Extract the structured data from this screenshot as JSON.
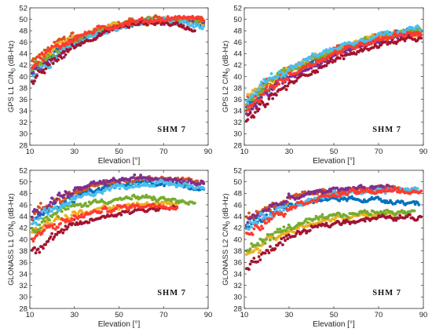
{
  "chart_data": [
    {
      "type": "scatter",
      "panel": "GPS L1",
      "xlabel": "Elevation [°]",
      "ylabel": "GPS L1 C/N0 (dB-Hz)",
      "ylabel_main": "GPS L1 C/N",
      "ylabel_sub": "0",
      "ylabel_unit": " (dB-Hz)",
      "annotation": "SHM 7",
      "xlim": [
        10,
        90
      ],
      "ylim": [
        28,
        52
      ],
      "xticks": [
        10,
        30,
        50,
        70,
        90
      ],
      "yticks": [
        28,
        30,
        32,
        34,
        36,
        38,
        40,
        42,
        44,
        46,
        48,
        50,
        52
      ],
      "grid": false,
      "series": [
        {
          "color": "#0072bd",
          "x": [
            11,
            20,
            30,
            40,
            50,
            60,
            70,
            80,
            88
          ],
          "y": [
            40.5,
            43.8,
            46.1,
            47.8,
            49.0,
            49.6,
            49.9,
            49.7,
            49.3
          ]
        },
        {
          "color": "#d95319",
          "x": [
            11,
            20,
            30,
            40,
            50,
            60,
            70,
            80,
            88
          ],
          "y": [
            42.5,
            45.0,
            46.9,
            48.2,
            49.2,
            49.8,
            50.2,
            50.1,
            49.8
          ]
        },
        {
          "color": "#edb120",
          "x": [
            11,
            20,
            30,
            40,
            50,
            60,
            70,
            80,
            88
          ],
          "y": [
            41.5,
            44.3,
            46.4,
            47.9,
            49.0,
            49.6,
            49.9,
            49.8,
            49.5
          ]
        },
        {
          "color": "#7e2f8e",
          "x": [
            11,
            20,
            30,
            40,
            50,
            60,
            70,
            80,
            88
          ],
          "y": [
            40.0,
            43.4,
            45.9,
            47.6,
            48.8,
            49.5,
            49.9,
            49.8,
            49.5
          ]
        },
        {
          "color": "#77ac30",
          "x": [
            11,
            20,
            30,
            40,
            50,
            60,
            70,
            80,
            88
          ],
          "y": [
            41.0,
            44.0,
            46.2,
            47.8,
            49.0,
            49.6,
            49.9,
            49.8,
            49.5
          ]
        },
        {
          "color": "#4dbeee",
          "x": [
            11,
            20,
            30,
            40,
            50,
            60,
            70,
            80,
            88
          ],
          "y": [
            39.2,
            42.8,
            45.5,
            47.4,
            48.7,
            49.4,
            49.8,
            49.4,
            48.8
          ]
        },
        {
          "color": "#a2142f",
          "x": [
            11,
            20,
            30,
            40,
            50,
            60,
            70,
            80,
            84
          ],
          "y": [
            38.6,
            42.5,
            45.3,
            47.2,
            48.6,
            49.3,
            49.5,
            48.7,
            48.1
          ]
        },
        {
          "color": "#ff3b30",
          "x": [
            11,
            20,
            30,
            40,
            50,
            60,
            70,
            80,
            88
          ],
          "y": [
            42.0,
            44.8,
            46.8,
            48.1,
            49.1,
            49.7,
            50.0,
            50.3,
            50.0
          ]
        }
      ]
    },
    {
      "type": "scatter",
      "panel": "GPS L2",
      "xlabel": "Elevation [°]",
      "ylabel": "GPS L2 C/N0 (dB-Hz)",
      "ylabel_main": "GPS L2 C/N",
      "ylabel_sub": "0",
      "ylabel_unit": " (dB-Hz)",
      "annotation": "SHM 7",
      "xlim": [
        10,
        90
      ],
      "ylim": [
        28,
        52
      ],
      "xticks": [
        10,
        30,
        50,
        70,
        90
      ],
      "yticks": [
        28,
        30,
        32,
        34,
        36,
        38,
        40,
        42,
        44,
        46,
        48,
        50,
        52
      ],
      "grid": false,
      "series": [
        {
          "color": "#0072bd",
          "x": [
            11,
            20,
            30,
            40,
            50,
            60,
            70,
            80,
            89
          ],
          "y": [
            34.5,
            37.8,
            40.5,
            42.5,
            44.2,
            45.6,
            46.8,
            47.7,
            48.0
          ]
        },
        {
          "color": "#d95319",
          "x": [
            11,
            20,
            30,
            40,
            50,
            60,
            70,
            80,
            89
          ],
          "y": [
            35.5,
            38.6,
            41.1,
            43.0,
            44.6,
            45.9,
            47.0,
            47.6,
            47.8
          ]
        },
        {
          "color": "#edb120",
          "x": [
            11,
            20,
            30,
            40,
            50,
            60,
            70,
            80,
            89
          ],
          "y": [
            36.2,
            39.0,
            41.4,
            43.2,
            44.7,
            46.0,
            47.0,
            47.6,
            47.7
          ]
        },
        {
          "color": "#7e2f8e",
          "x": [
            11,
            20,
            30,
            40,
            50,
            60,
            70,
            80,
            89
          ],
          "y": [
            33.5,
            37.0,
            39.8,
            41.9,
            43.7,
            45.1,
            46.3,
            47.2,
            47.5
          ]
        },
        {
          "color": "#77ac30",
          "x": [
            11,
            20,
            30,
            40,
            50,
            60,
            70,
            80,
            89
          ],
          "y": [
            35.0,
            38.8,
            41.0,
            42.8,
            44.4,
            45.8,
            46.9,
            47.6,
            48.0
          ]
        },
        {
          "color": "#4dbeee",
          "x": [
            11,
            20,
            30,
            40,
            50,
            60,
            70,
            80,
            89
          ],
          "y": [
            36.0,
            39.2,
            41.6,
            43.4,
            44.9,
            46.2,
            47.3,
            48.1,
            48.4
          ]
        },
        {
          "color": "#a2142f",
          "x": [
            11,
            20,
            30,
            40,
            50,
            60,
            70,
            80,
            89
          ],
          "y": [
            32.0,
            35.6,
            38.6,
            40.9,
            42.8,
            44.3,
            45.6,
            46.3,
            46.6
          ]
        },
        {
          "color": "#ff3b30",
          "x": [
            11,
            20,
            30,
            40,
            50,
            60,
            70,
            80,
            89
          ],
          "y": [
            34.0,
            37.4,
            40.2,
            42.3,
            44.0,
            45.4,
            46.6,
            47.4,
            47.6
          ]
        }
      ]
    },
    {
      "type": "scatter",
      "panel": "GLONASS L1",
      "xlabel": "Elevation [°]",
      "ylabel": "GLONASS L1 C/N0 (dB-Hz)",
      "ylabel_main": "GLONASS L1 C/N",
      "ylabel_sub": "0",
      "ylabel_unit": " (dB-Hz)",
      "annotation": "SHM 7",
      "xlim": [
        10,
        90
      ],
      "ylim": [
        28,
        52
      ],
      "xticks": [
        10,
        30,
        50,
        70,
        90
      ],
      "yticks": [
        28,
        30,
        32,
        34,
        36,
        38,
        40,
        42,
        44,
        46,
        48,
        50,
        52
      ],
      "grid": false,
      "series": [
        {
          "color": "#0072bd",
          "x": [
            11,
            20,
            30,
            40,
            50,
            60,
            70,
            80,
            88
          ],
          "y": [
            43.0,
            45.5,
            47.3,
            48.6,
            49.4,
            49.8,
            49.8,
            49.4,
            48.8
          ]
        },
        {
          "color": "#d95319",
          "x": [
            11,
            20,
            30,
            40,
            50,
            60,
            70,
            80,
            88
          ],
          "y": [
            44.0,
            46.4,
            48.1,
            49.3,
            50.1,
            50.5,
            50.6,
            50.3,
            49.8
          ]
        },
        {
          "color": "#edb120",
          "x": [
            11,
            20,
            30,
            40,
            50,
            60,
            70,
            76
          ],
          "y": [
            41.5,
            43.2,
            44.4,
            45.2,
            45.7,
            46.0,
            46.1,
            45.9
          ]
        },
        {
          "color": "#7e2f8e",
          "x": [
            11,
            20,
            30,
            40,
            50,
            60,
            70,
            80,
            88
          ],
          "y": [
            44.5,
            46.8,
            48.5,
            49.6,
            50.3,
            50.7,
            50.7,
            50.3,
            49.7
          ]
        },
        {
          "color": "#77ac30",
          "x": [
            11,
            20,
            30,
            40,
            50,
            60,
            70,
            80,
            84
          ],
          "y": [
            42.0,
            44.3,
            45.7,
            46.6,
            47.0,
            47.2,
            47.0,
            46.4,
            46.0
          ]
        },
        {
          "color": "#4dbeee",
          "x": [
            11,
            20,
            30,
            40,
            50,
            60,
            70,
            80,
            88
          ],
          "y": [
            42.5,
            45.0,
            46.9,
            48.3,
            49.2,
            49.6,
            49.7,
            49.4,
            49.0
          ]
        },
        {
          "color": "#a2142f",
          "x": [
            11,
            20,
            30,
            40,
            50,
            60,
            70,
            76
          ],
          "y": [
            38.0,
            40.5,
            42.3,
            43.6,
            44.6,
            45.2,
            45.5,
            45.3
          ]
        },
        {
          "color": "#ff3b30",
          "x": [
            11,
            20,
            30,
            40,
            50,
            60,
            70,
            76
          ],
          "y": [
            40.0,
            42.2,
            43.7,
            44.8,
            45.5,
            45.9,
            46.0,
            45.8
          ]
        }
      ]
    },
    {
      "type": "scatter",
      "panel": "GLONASS L2",
      "xlabel": "Elevation [°]",
      "ylabel": "GLONASS L2 C/N0 (dB-Hz)",
      "ylabel_main": "GLONASS L2 C/N",
      "ylabel_sub": "0",
      "ylabel_unit": " (dB-Hz)",
      "annotation": "SHM 7",
      "xlim": [
        10,
        90
      ],
      "ylim": [
        28,
        52
      ],
      "xticks": [
        10,
        30,
        50,
        70,
        90
      ],
      "yticks": [
        28,
        30,
        32,
        34,
        36,
        38,
        40,
        42,
        44,
        46,
        48,
        50,
        52
      ],
      "grid": false,
      "series": [
        {
          "color": "#0072bd",
          "x": [
            11,
            20,
            30,
            40,
            50,
            60,
            70,
            80,
            88
          ],
          "y": [
            42.5,
            44.5,
            45.8,
            46.6,
            47.0,
            47.1,
            46.9,
            46.6,
            46.3
          ]
        },
        {
          "color": "#d95319",
          "x": [
            11,
            20,
            30,
            40,
            50,
            60,
            70,
            80,
            86
          ],
          "y": [
            43.5,
            45.6,
            47.0,
            47.9,
            48.4,
            48.7,
            48.8,
            48.7,
            48.5
          ]
        },
        {
          "color": "#edb120",
          "x": [
            11,
            20,
            30,
            40,
            50,
            60,
            70,
            78
          ],
          "y": [
            37.5,
            39.8,
            41.5,
            42.7,
            43.5,
            44.0,
            44.3,
            44.4
          ]
        },
        {
          "color": "#7e2f8e",
          "x": [
            11,
            20,
            30,
            40,
            50,
            60,
            70,
            76
          ],
          "y": [
            43.0,
            45.3,
            46.9,
            47.9,
            48.6,
            49.0,
            49.1,
            49.0
          ]
        },
        {
          "color": "#77ac30",
          "x": [
            11,
            20,
            30,
            40,
            50,
            60,
            70,
            80,
            86
          ],
          "y": [
            38.0,
            40.3,
            42.0,
            43.2,
            44.0,
            44.5,
            44.8,
            44.9,
            44.8
          ]
        },
        {
          "color": "#4dbeee",
          "x": [
            11,
            20,
            30,
            40,
            50,
            60,
            70,
            80,
            88
          ],
          "y": [
            42.0,
            44.2,
            45.8,
            46.9,
            47.7,
            48.2,
            48.5,
            48.6,
            48.5
          ]
        },
        {
          "color": "#a2142f",
          "x": [
            11,
            20,
            30,
            40,
            50,
            60,
            70,
            80,
            89
          ],
          "y": [
            35.0,
            38.0,
            40.3,
            41.8,
            42.8,
            43.4,
            43.7,
            43.8,
            43.8
          ]
        },
        {
          "color": "#ff3b30",
          "x": [
            11,
            20,
            30,
            40,
            50,
            60,
            70,
            80,
            89
          ],
          "y": [
            41.0,
            43.6,
            45.6,
            46.9,
            47.7,
            48.2,
            48.4,
            48.4,
            48.2
          ]
        }
      ]
    }
  ]
}
